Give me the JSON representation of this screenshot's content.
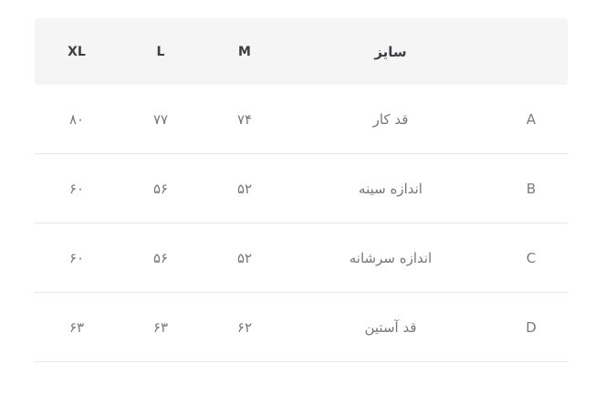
{
  "size_table": {
    "direction": "rtl",
    "header": {
      "corner_label": "",
      "size_label": "سایز",
      "m_label": "M",
      "l_label": "L",
      "xl_label": "XL"
    },
    "rows": [
      {
        "letter": "A",
        "name": "قد کار",
        "m": "۷۴",
        "l": "۷۷",
        "xl": "۸۰"
      },
      {
        "letter": "B",
        "name": "اندازه سینه",
        "m": "۵۲",
        "l": "۵۶",
        "xl": "۶۰"
      },
      {
        "letter": "C",
        "name": "اندازه سرشانه",
        "m": "۵۲",
        "l": "۵۶",
        "xl": "۶۰"
      },
      {
        "letter": "D",
        "name": "قد آستین",
        "m": "۶۲",
        "l": "۶۳",
        "xl": "۶۳"
      }
    ],
    "colors": {
      "header_bg": "#f5f5f6",
      "header_text": "#3e3e43",
      "cell_text": "#77777b",
      "divider": "#e7e7e8",
      "page_bg": "#ffffff"
    }
  },
  "chart_data": {
    "type": "table",
    "title": "",
    "direction": "rtl",
    "columns": [
      "",
      "سایز",
      "M",
      "L",
      "XL"
    ],
    "rows": [
      {
        "label": "A",
        "measure": "قد کار",
        "values": {
          "M": 74,
          "L": 77,
          "XL": 80
        }
      },
      {
        "label": "B",
        "measure": "اندازه سینه",
        "values": {
          "M": 52,
          "L": 56,
          "XL": 60
        }
      },
      {
        "label": "C",
        "measure": "اندازه سرشانه",
        "values": {
          "M": 52,
          "L": 56,
          "XL": 60
        }
      },
      {
        "label": "D",
        "measure": "قد آستین",
        "values": {
          "M": 62,
          "L": 63,
          "XL": 63
        }
      }
    ],
    "display_digits": "persian",
    "grid": "horizontal-dividers-only",
    "header_background": "#f5f5f6"
  }
}
